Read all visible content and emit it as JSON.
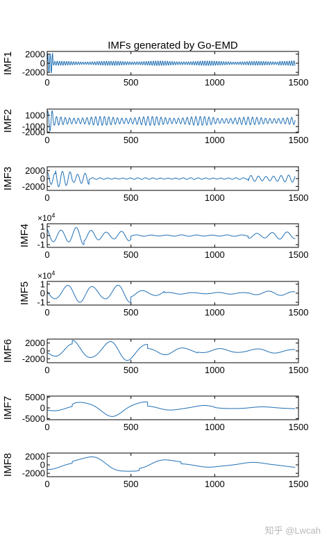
{
  "title": "IMFs generated by Go-EMD",
  "watermark": "知乎 @Lwcah",
  "colors": {
    "series": "#1f6fb4",
    "axes": "#000000"
  },
  "chart_data": [
    {
      "type": "line",
      "name": "IMF1",
      "ylabel": "IMF1",
      "xlim": [
        0,
        1500
      ],
      "xticks": [
        0,
        500,
        1000,
        1500
      ],
      "ylim": [
        -2600,
        2600
      ],
      "yticks": [
        2000,
        0,
        -2000
      ],
      "yticklabels": [
        "2000",
        "0",
        "-2000"
      ],
      "exponent": "",
      "signal": {
        "period": 14,
        "segments": [
          [
            0,
            35,
            2400
          ],
          [
            35,
            400,
            450
          ],
          [
            400,
            1100,
            500
          ],
          [
            1100,
            1380,
            430
          ],
          [
            1380,
            1480,
            700
          ]
        ]
      }
    },
    {
      "type": "line",
      "name": "IMF2",
      "ylabel": "IMF2",
      "xlim": [
        0,
        1500
      ],
      "xticks": [
        0,
        500,
        1000,
        1500
      ],
      "ylim": [
        -2100,
        2100
      ],
      "yticks": [
        1000,
        -1000,
        -2000
      ],
      "yticklabels": [
        "1000",
        "-1000",
        "-2000"
      ],
      "exponent": "",
      "signal": {
        "period": 26,
        "segments": [
          [
            0,
            35,
            1800
          ],
          [
            35,
            1000,
            800
          ],
          [
            1000,
            1480,
            700
          ]
        ]
      }
    },
    {
      "type": "line",
      "name": "IMF3",
      "ylabel": "IMF3",
      "xlim": [
        0,
        1500
      ],
      "xticks": [
        0,
        500,
        1000,
        1500
      ],
      "ylim": [
        -3000,
        3000
      ],
      "yticks": [
        2000,
        0,
        -2000
      ],
      "yticklabels": [
        "2000",
        "0",
        "-2000"
      ],
      "exponent": "",
      "signal": {
        "period": 45,
        "segments": [
          [
            0,
            50,
            1600
          ],
          [
            50,
            150,
            2800
          ],
          [
            150,
            250,
            1500
          ],
          [
            250,
            1200,
            200
          ],
          [
            1200,
            1480,
            900
          ]
        ]
      }
    },
    {
      "type": "line",
      "name": "IMF4",
      "ylabel": "IMF4",
      "xlim": [
        0,
        1500
      ],
      "xticks": [
        0,
        500,
        1000,
        1500
      ],
      "ylim": [
        -1.3,
        1.3
      ],
      "yticks": [
        1,
        0,
        -1
      ],
      "yticklabels": [
        "1",
        "0",
        "-1"
      ],
      "exponent": "4",
      "signal": {
        "period": 90,
        "segments": [
          [
            0,
            220,
            1.0
          ],
          [
            220,
            500,
            0.6
          ],
          [
            500,
            1200,
            0.08
          ],
          [
            1200,
            1480,
            0.4
          ]
        ]
      }
    },
    {
      "type": "line",
      "name": "IMF5",
      "ylabel": "IMF5",
      "xlim": [
        0,
        1500
      ],
      "xticks": [
        0,
        500,
        1000,
        1500
      ],
      "ylim": [
        -1.3,
        1.3
      ],
      "yticks": [
        1,
        0,
        -1
      ],
      "yticklabels": [
        "1",
        "0",
        "-1"
      ],
      "exponent": "4",
      "signal": {
        "period": 150,
        "segments": [
          [
            0,
            500,
            1.0
          ],
          [
            500,
            700,
            0.4
          ],
          [
            700,
            1200,
            0.1
          ],
          [
            1200,
            1480,
            0.25
          ]
        ]
      }
    },
    {
      "type": "line",
      "name": "IMF6",
      "ylabel": "IMF6",
      "xlim": [
        0,
        1500
      ],
      "xticks": [
        0,
        500,
        1000,
        1500
      ],
      "ylim": [
        -3000,
        3000
      ],
      "yticks": [
        2000,
        0,
        -2000
      ],
      "yticklabels": [
        "2000",
        "0",
        "-2000"
      ],
      "exponent": "",
      "signal": {
        "period": 220,
        "segments": [
          [
            0,
            150,
            1800
          ],
          [
            150,
            600,
            2700
          ],
          [
            600,
            900,
            1000
          ],
          [
            900,
            1480,
            600
          ]
        ]
      }
    },
    {
      "type": "line",
      "name": "IMF7",
      "ylabel": "IMF7",
      "xlim": [
        0,
        1500
      ],
      "xticks": [
        0,
        500,
        1000,
        1500
      ],
      "ylim": [
        -5500,
        5500
      ],
      "yticks": [
        5000,
        0,
        -5000
      ],
      "yticklabels": [
        "5000",
        "0",
        "-5000"
      ],
      "exponent": "",
      "signal": {
        "period": 360,
        "segments": [
          [
            0,
            150,
            1500
          ],
          [
            150,
            600,
            4000
          ],
          [
            600,
            1000,
            1200
          ],
          [
            1000,
            1480,
            500
          ]
        ]
      }
    },
    {
      "type": "line",
      "name": "IMF8",
      "ylabel": "IMF8",
      "xlim": [
        0,
        1500
      ],
      "xticks": [
        0,
        500,
        1000,
        1500
      ],
      "ylim": [
        -2800,
        2800
      ],
      "yticks": [
        2000,
        0,
        -2000
      ],
      "yticklabels": [
        "2000",
        "0",
        "-2000"
      ],
      "exponent": "",
      "signal": {
        "period": 500,
        "segments": [
          [
            0,
            150,
            1200
          ],
          [
            150,
            550,
            2500
          ],
          [
            550,
            800,
            1600
          ],
          [
            800,
            1480,
            600
          ]
        ]
      }
    }
  ]
}
